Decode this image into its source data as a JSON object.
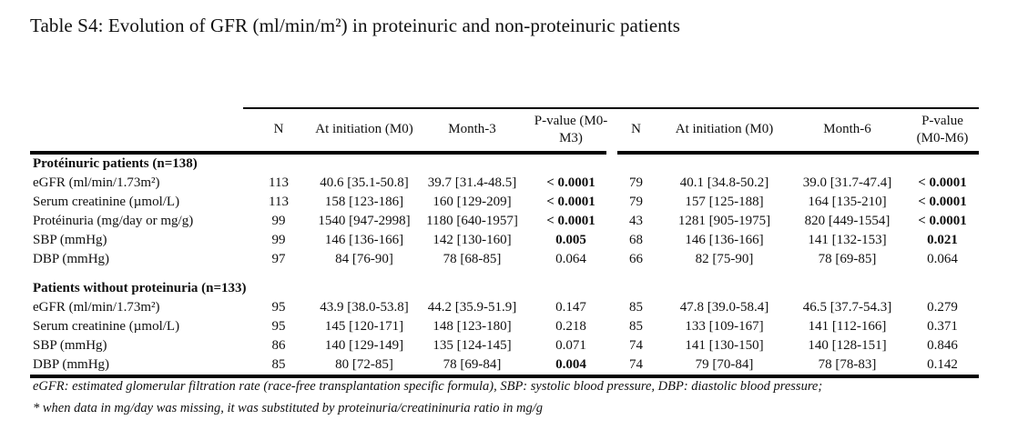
{
  "page": {
    "title": "Table S4: Evolution of GFR (ml/min/m²) in proteinuric and non-proteinuric patients"
  },
  "table": {
    "columns": [
      "",
      "N",
      "At initiation (M0)",
      "Month-3",
      "P-value (M0-M3)",
      "N",
      "At initiation (M0)",
      "Month-6",
      "P-value (M0-M6)"
    ],
    "sections": [
      {
        "header": "Protéinuric patients (n=138)",
        "rows": [
          {
            "label": "eGFR (ml/min/1.73m²)",
            "n1": "113",
            "m0a": "40.6 [35.1-50.8]",
            "t1": "39.7 [31.4-48.5]",
            "p1": "< 0.0001",
            "p1_bold": true,
            "n2": "79",
            "m0b": "40.1 [34.8-50.2]",
            "t2": "39.0 [31.7-47.4]",
            "p2": "< 0.0001",
            "p2_bold": true
          },
          {
            "label": "Serum creatinine (µmol/L)",
            "n1": "113",
            "m0a": "158 [123-186]",
            "t1": "160 [129-209]",
            "p1": "< 0.0001",
            "p1_bold": true,
            "n2": "79",
            "m0b": "157 [125-188]",
            "t2": "164 [135-210]",
            "p2": "< 0.0001",
            "p2_bold": true
          },
          {
            "label": "Protéinuria (mg/day or mg/g)",
            "n1": "99",
            "m0a": "1540 [947-2998]",
            "t1": "1180 [640-1957]",
            "p1": "< 0.0001",
            "p1_bold": true,
            "n2": "43",
            "m0b": "1281 [905-1975]",
            "t2": "820 [449-1554]",
            "p2": "< 0.0001",
            "p2_bold": true
          },
          {
            "label": "SBP (mmHg)",
            "n1": "99",
            "m0a": "146 [136-166]",
            "t1": "142 [130-160]",
            "p1": "0.005",
            "p1_bold": true,
            "n2": "68",
            "m0b": "146 [136-166]",
            "t2": "141 [132-153]",
            "p2": "0.021",
            "p2_bold": true
          },
          {
            "label": "DBP (mmHg)",
            "n1": "97",
            "m0a": "84 [76-90]",
            "t1": "78 [68-85]",
            "p1": "0.064",
            "p1_bold": false,
            "n2": "66",
            "m0b": "82 [75-90]",
            "t2": "78 [69-85]",
            "p2": "0.064",
            "p2_bold": false
          }
        ]
      },
      {
        "header": "Patients without proteinuria (n=133)",
        "rows": [
          {
            "label": "eGFR (ml/min/1.73m²)",
            "n1": "95",
            "m0a": "43.9 [38.0-53.8]",
            "t1": "44.2 [35.9-51.9]",
            "p1": "0.147",
            "p1_bold": false,
            "n2": "85",
            "m0b": "47.8 [39.0-58.4]",
            "t2": "46.5 [37.7-54.3]",
            "p2": "0.279",
            "p2_bold": false
          },
          {
            "label": "Serum creatinine (µmol/L)",
            "n1": "95",
            "m0a": "145 [120-171]",
            "t1": "148 [123-180]",
            "p1": "0.218",
            "p1_bold": false,
            "n2": "85",
            "m0b": "133 [109-167]",
            "t2": "141 [112-166]",
            "p2": "0.371",
            "p2_bold": false
          },
          {
            "label": "SBP (mmHg)",
            "n1": "86",
            "m0a": "140 [129-149]",
            "t1": "135 [124-145]",
            "p1": "0.071",
            "p1_bold": false,
            "n2": "74",
            "m0b": "141 [130-150]",
            "t2": "140 [128-151]",
            "p2": "0.846",
            "p2_bold": false
          },
          {
            "label": "DBP (mmHg)",
            "n1": "85",
            "m0a": "80 [72-85]",
            "t1": "78 [69-84]",
            "p1": "0.004",
            "p1_bold": true,
            "n2": "74",
            "m0b": "79 [70-84]",
            "t2": "78 [78-83]",
            "p2": "0.142",
            "p2_bold": false
          }
        ]
      }
    ]
  },
  "footnotes": [
    "eGFR: estimated glomerular filtration rate (race-free transplantation specific formula), SBP: systolic blood pressure, DBP: diastolic blood pressure;",
    "* when data in mg/day was missing, it was substituted by proteinuria/creatininuria ratio in mg/g"
  ]
}
